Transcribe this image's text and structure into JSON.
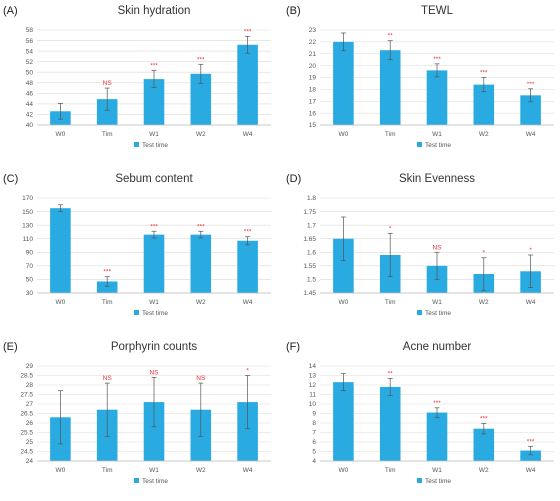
{
  "chart_data": [
    {
      "panel": "(A)",
      "title": "Skin hydration",
      "type": "bar",
      "categories": [
        "W0",
        "Tim",
        "W1",
        "W2",
        "W4"
      ],
      "series": [
        {
          "name": "Test time",
          "values": [
            42.6,
            44.9,
            48.7,
            49.7,
            55.2
          ]
        }
      ],
      "errors": [
        1.5,
        2.1,
        1.6,
        1.8,
        1.6
      ],
      "significance": [
        "",
        "NS",
        "***",
        "***",
        "***"
      ],
      "ylim": [
        40,
        58
      ],
      "yticks": [
        "40",
        "42",
        "44",
        "46",
        "48",
        "50",
        "52",
        "54",
        "56",
        "58"
      ],
      "legend": "bottom-center",
      "color": "#29abe2"
    },
    {
      "panel": "(B)",
      "title": "TEWL",
      "type": "bar",
      "categories": [
        "W0",
        "Tim",
        "W1",
        "W2",
        "W4"
      ],
      "series": [
        {
          "name": "Test time",
          "values": [
            22.0,
            21.3,
            19.6,
            18.4,
            17.5
          ]
        }
      ],
      "errors": [
        0.75,
        0.8,
        0.55,
        0.6,
        0.55
      ],
      "significance": [
        "",
        "**",
        "***",
        "***",
        "***"
      ],
      "ylim": [
        15,
        23
      ],
      "yticks": [
        "15",
        "16",
        "17",
        "18",
        "19",
        "20",
        "21",
        "22",
        "23"
      ],
      "legend": "bottom-center",
      "color": "#29abe2"
    },
    {
      "panel": "(C)",
      "title": "Sebum content",
      "type": "bar",
      "categories": [
        "W0",
        "Tim",
        "W1",
        "W2",
        "W4"
      ],
      "series": [
        {
          "name": "Test time",
          "values": [
            155,
            47,
            116,
            116,
            107
          ]
        }
      ],
      "errors": [
        5,
        7,
        5,
        5,
        6
      ],
      "significance": [
        "",
        "***",
        "***",
        "***",
        "***"
      ],
      "ylim": [
        30,
        170
      ],
      "yticks": [
        "30",
        "50",
        "70",
        "90",
        "110",
        "130",
        "150",
        "170"
      ],
      "legend": "bottom-center",
      "color": "#29abe2"
    },
    {
      "panel": "(D)",
      "title": "Skin Evenness",
      "type": "bar",
      "categories": [
        "W0",
        "Tim",
        "W1",
        "W2",
        "W4"
      ],
      "series": [
        {
          "name": "Test time",
          "values": [
            1.65,
            1.59,
            1.55,
            1.52,
            1.53
          ]
        }
      ],
      "errors": [
        0.08,
        0.08,
        0.05,
        0.06,
        0.06
      ],
      "significance": [
        "",
        "*",
        "NS",
        "*",
        "*"
      ],
      "ylim": [
        1.45,
        1.8
      ],
      "yticks": [
        "1.45",
        "1.5",
        "1.55",
        "1.6",
        "1.65",
        "1.7",
        "1.75",
        "1.8"
      ],
      "legend": "bottom-center",
      "color": "#29abe2"
    },
    {
      "panel": "(E)",
      "title": "Porphyrin counts",
      "type": "bar",
      "categories": [
        "W0",
        "Tim",
        "W1",
        "W2",
        "W4"
      ],
      "series": [
        {
          "name": "Test time",
          "values": [
            26.3,
            26.7,
            27.1,
            26.7,
            27.1
          ]
        }
      ],
      "errors": [
        1.4,
        1.4,
        1.3,
        1.4,
        1.4
      ],
      "significance": [
        "",
        "NS",
        "NS",
        "NS",
        "*"
      ],
      "ylim": [
        24,
        29
      ],
      "yticks": [
        "24",
        "24.5",
        "25",
        "25.5",
        "26",
        "26.5",
        "27",
        "27.5",
        "28",
        "28.5",
        "29"
      ],
      "legend": "bottom-center",
      "color": "#29abe2"
    },
    {
      "panel": "(F)",
      "title": "Acne number",
      "type": "bar",
      "categories": [
        "W0",
        "Tim",
        "W1",
        "W2",
        "W4"
      ],
      "series": [
        {
          "name": "Test time",
          "values": [
            12.3,
            11.8,
            9.1,
            7.4,
            5.1
          ]
        }
      ],
      "errors": [
        0.9,
        0.9,
        0.5,
        0.55,
        0.45
      ],
      "significance": [
        "",
        "**",
        "***",
        "***",
        "***"
      ],
      "ylim": [
        4,
        14
      ],
      "yticks": [
        "4",
        "5",
        "6",
        "7",
        "8",
        "9",
        "10",
        "11",
        "12",
        "13",
        "14"
      ],
      "legend": "bottom-center",
      "color": "#29abe2"
    }
  ]
}
